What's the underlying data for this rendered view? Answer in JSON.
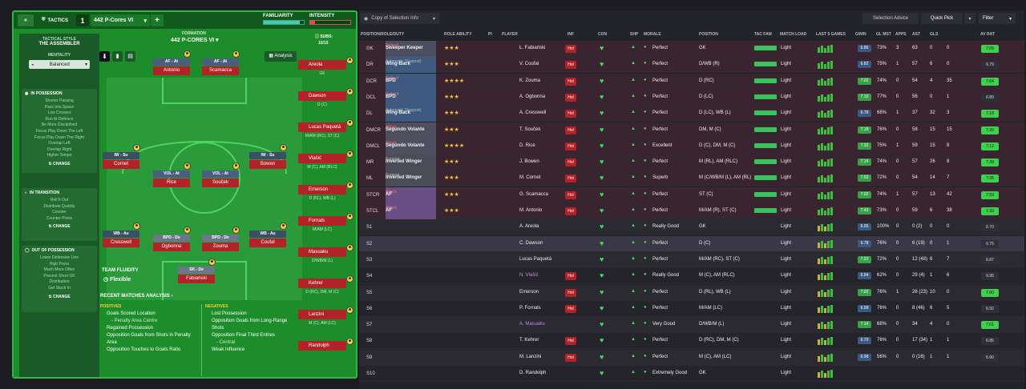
{
  "tactics": {
    "back": "«",
    "label": "TACTICS",
    "slot": "1",
    "name": "442 P-Cores VI",
    "add": "+",
    "familiarity": "FAMILIARITY",
    "intensity": "INTENSITY"
  },
  "side": {
    "style_label": "TACTICAL STYLE",
    "style": "THE ASSEMBLER",
    "mentality_label": "MENTALITY",
    "mentality": "Balanced",
    "in_possession": "IN POSSESSION",
    "in_possession_items": [
      "Shorter Passing",
      "Pass Into Space",
      "Low Crosses",
      "Run At Defence",
      "Be More Disciplined",
      "Focus Play Down The Left",
      "Focus Play Down The Right",
      "Overlap Left",
      "Overlap Right",
      "Higher Tempo"
    ],
    "in_transition": "IN TRANSITION",
    "in_transition_items": [
      "Roll It Out",
      "Distribute Quickly",
      "Counter",
      "Counter-Press"
    ],
    "out_of_possession": "OUT OF POSSESSION",
    "out_items": [
      "Lower Defensive Line",
      "High Press",
      "Much More Often",
      "Prevent Short GK",
      "Distribution",
      "Get Stuck In"
    ],
    "change": "CHANGE"
  },
  "formation": {
    "label": "FORMATION",
    "name": "442 P-CORES VI",
    "subs_label": "SUBS:",
    "subs": "15/15",
    "analysis": "Analysis",
    "fluidity_label": "TEAM FLUIDITY",
    "fluidity": "Flexible"
  },
  "pitch_players": [
    {
      "role": "AF - At",
      "name": "Antonio"
    },
    {
      "role": "AF - At",
      "name": "Scamacca"
    },
    {
      "role": "IW - Su",
      "name": "Cornet"
    },
    {
      "role": "IW - Su",
      "name": "Bowen"
    },
    {
      "role": "VOL - At",
      "name": "Rice"
    },
    {
      "role": "VOL - At",
      "name": "Souček"
    },
    {
      "role": "WB - Au",
      "name": "Cresswell"
    },
    {
      "role": "BPD - De",
      "name": "Ogbonna"
    },
    {
      "role": "BPD - De",
      "name": "Zouma"
    },
    {
      "role": "WB - Au",
      "name": "Coufal"
    },
    {
      "role": "SK - De",
      "name": "Fabiański"
    }
  ],
  "subs_list": [
    {
      "name": "Areola",
      "pos": "GK"
    },
    {
      "name": "Dawson",
      "pos": "D (C)"
    },
    {
      "name": "Lucas Paquetá",
      "pos": "M/AM (RC), ST (C)"
    },
    {
      "name": "Vlašić",
      "pos": "M (C), AM (RLC)"
    },
    {
      "name": "Emerson",
      "pos": "D (RL), WB (L)"
    },
    {
      "name": "Fornals",
      "pos": "M/AM (LC)"
    },
    {
      "name": "Masuaku",
      "pos": "D/WB/M (L)"
    },
    {
      "name": "Kehrer",
      "pos": "D (RC), DM, M (C)"
    },
    {
      "name": "Lanzini",
      "pos": "M (C), AM (LC)"
    },
    {
      "name": "Randolph",
      "pos": ""
    }
  ],
  "recent": {
    "title": "RECENT MATCHES ANALYSIS",
    "positives": "POSITIVES",
    "negatives": "NEGATIVES",
    "pos_items": [
      "Goals Scored Location",
      "- Penalty Area Centre",
      "Regained Possession",
      "Opposition Goals from Shots in Penalty Area",
      "Opposition Touches to Goals Ratio"
    ],
    "neg_items": [
      "Lost Possession",
      "Opposition Goals from Long-Range Shots",
      "Opposition Final Third Entries",
      "- Central",
      "Weak Influence"
    ]
  },
  "rp_header": {
    "view": "Copy of Selection Info",
    "advice": "Selection Advice",
    "quick": "Quick Pick",
    "filter": "Filter"
  },
  "columns": [
    "POSITION/ROLE/DUTY",
    "ROLE ABILITY",
    "PI",
    "PLAYER",
    "INF",
    "CON",
    "SHP",
    "MORALE",
    "POSITION",
    "TAC FAM",
    "MATCH LOAD",
    "LAST 5 GAMES",
    "GWIN",
    "GL MST",
    "APPS",
    "AST",
    "GLS",
    "AV RAT"
  ],
  "rows": [
    {
      "pos": "GK",
      "role": "Sweeper Keeper",
      "duty": "Defend",
      "stars": "★★★",
      "player": "Ł. Fabiański",
      "inf": true,
      "morale": "Perfect",
      "position": "GK",
      "load": "Light",
      "form": "6.86",
      "gwin": "73%",
      "glm": "3",
      "apps": "63",
      "ast": "0",
      "gls": "0",
      "av": "7.09"
    },
    {
      "pos": "DR",
      "role": "Wing-Back",
      "duty": "Automatic (Support)",
      "stars": "★★★",
      "player": "V. Coufal",
      "inf": true,
      "morale": "Perfect",
      "position": "D/WB (R)",
      "load": "Light",
      "form": "6.82",
      "gwin": "75%",
      "glm": "1",
      "apps": "57",
      "ast": "6",
      "gls": "0",
      "av": "6.79"
    },
    {
      "pos": "DCR",
      "role": "BPD",
      "duty": "Defend",
      "stars": "★★★★",
      "player": "K. Zouma",
      "inf": true,
      "morale": "Perfect",
      "position": "D (RC)",
      "load": "Light",
      "form": "7.02",
      "gwin": "74%",
      "glm": "0",
      "apps": "54",
      "ast": "4",
      "gls": "35",
      "av": "7.64"
    },
    {
      "pos": "DCL",
      "role": "BPD",
      "duty": "Defend",
      "stars": "★★★",
      "player": "A. Ogbonna",
      "inf": true,
      "morale": "Perfect",
      "position": "D (LC)",
      "load": "Light",
      "form": "7.10",
      "gwin": "77%",
      "glm": "0",
      "apps": "56",
      "ast": "0",
      "gls": "1",
      "av": "6.89"
    },
    {
      "pos": "DL",
      "role": "Wing-Back",
      "duty": "Automatic (Support)",
      "stars": "★★★",
      "player": "A. Cresswell",
      "inf": true,
      "morale": "Perfect",
      "position": "D (LC), WB (L)",
      "load": "Light",
      "form": "6.78",
      "gwin": "68%",
      "glm": "1",
      "apps": "37",
      "ast": "32",
      "gls": "3",
      "av": "7.18"
    },
    {
      "pos": "DMCR",
      "role": "Segundo Volante",
      "duty": "Attack",
      "stars": "★★★",
      "player": "T. Souček",
      "inf": true,
      "morale": "Perfect",
      "position": "DM, M (C)",
      "load": "Light",
      "form": "7.18",
      "gwin": "76%",
      "glm": "0",
      "apps": "58",
      "ast": "15",
      "gls": "15",
      "av": "7.26"
    },
    {
      "pos": "DMCL",
      "role": "Segundo Volante",
      "duty": "Attack",
      "stars": "★★★★",
      "player": "D. Rice",
      "inf": true,
      "morale": "Excellent",
      "position": "D (C), DM, M (C)",
      "load": "Light",
      "form": "7.32",
      "gwin": "75%",
      "glm": "1",
      "apps": "59",
      "ast": "15",
      "gls": "8",
      "av": "7.12"
    },
    {
      "pos": "MR",
      "role": "Inverted Winger",
      "duty": "Support",
      "stars": "★★★",
      "player": "J. Bowen",
      "inf": true,
      "morale": "Perfect",
      "position": "M (RL), AM (RLC)",
      "load": "Light",
      "form": "7.14",
      "gwin": "74%",
      "glm": "0",
      "apps": "57",
      "ast": "26",
      "gls": "8",
      "av": "7.39"
    },
    {
      "pos": "ML",
      "role": "Inverted Winger",
      "duty": "Support",
      "stars": "★★★",
      "player": "M. Cornet",
      "inf": true,
      "morale": "Superb",
      "position": "M (C/WB/M (L), AM (RL)",
      "load": "Light",
      "form": "7.02",
      "gwin": "72%",
      "glm": "0",
      "apps": "54",
      "ast": "14",
      "gls": "7",
      "av": "7.05"
    },
    {
      "pos": "STCR",
      "role": "AF",
      "duty": "Attack",
      "stars": "★★★",
      "player": "G. Scamacca",
      "inf": true,
      "morale": "Perfect",
      "position": "ST (C)",
      "load": "Light",
      "form": "7.02",
      "gwin": "74%",
      "glm": "1",
      "apps": "57",
      "ast": "13",
      "gls": "42",
      "av": "7.59"
    },
    {
      "pos": "STCL",
      "role": "AF",
      "duty": "Attack",
      "stars": "★★★",
      "player": "M. Antonio",
      "inf": true,
      "morale": "Perfect",
      "position": "M/AM (R), ST (C)",
      "load": "Light",
      "form": "7.43",
      "gwin": "73%",
      "glm": "0",
      "apps": "59",
      "ast": "6",
      "gls": "38",
      "av": "7.33"
    },
    {
      "pos": "S1",
      "role": "",
      "duty": "",
      "stars": "",
      "player": "A. Areola",
      "inf": false,
      "morale": "Really Good",
      "position": "GK",
      "load": "Light",
      "form": "6.95",
      "gwin": "100%",
      "glm": "0",
      "apps": "0 (2)",
      "ast": "0",
      "gls": "0",
      "av": "6.70"
    },
    {
      "pos": "S2",
      "role": "",
      "duty": "",
      "stars": "",
      "player": "C. Dawson",
      "inf": false,
      "morale": "Perfect",
      "position": "D (C)",
      "load": "Light",
      "form": "6.78",
      "gwin": "76%",
      "glm": "0",
      "apps": "6 (19)",
      "ast": "0",
      "gls": "1",
      "av": "6.75"
    },
    {
      "pos": "S3",
      "role": "",
      "duty": "",
      "stars": "",
      "player": "Lucas Paquetá",
      "inf": false,
      "morale": "Perfect",
      "position": "M/AM (RC), ST (C)",
      "load": "Light",
      "form": "7.22",
      "gwin": "72%",
      "glm": "0",
      "apps": "12 (48)",
      "ast": "6",
      "gls": "7",
      "av": "6.87"
    },
    {
      "pos": "S4",
      "role": "",
      "duty": "",
      "stars": "",
      "player": "N. Vlašić",
      "inf": true,
      "morale": "Really Good",
      "position": "M (C), AM (RLC)",
      "load": "Light",
      "form": "6.94",
      "gwin": "62%",
      "glm": "0",
      "apps": "29 (4)",
      "ast": "1",
      "gls": "6",
      "av": "6.95"
    },
    {
      "pos": "S5",
      "role": "",
      "duty": "",
      "stars": "",
      "player": "Emerson",
      "inf": true,
      "morale": "Perfect",
      "position": "D (RL), WB (L)",
      "load": "Light",
      "form": "7.02",
      "gwin": "76%",
      "glm": "1",
      "apps": "26 (23)",
      "ast": "10",
      "gls": "0",
      "av": "7.00"
    },
    {
      "pos": "S6",
      "role": "",
      "duty": "",
      "stars": "",
      "player": "P. Fornals",
      "inf": true,
      "morale": "Perfect",
      "position": "M/AM (LC)",
      "load": "Light",
      "form": "6.98",
      "gwin": "76%",
      "glm": "0",
      "apps": "8 (46)",
      "ast": "6",
      "gls": "5",
      "av": "6.92"
    },
    {
      "pos": "S7",
      "role": "",
      "duty": "",
      "stars": "",
      "player": "A. Masuaku",
      "inf": false,
      "morale": "Very Good",
      "position": "D/WB/M (L)",
      "load": "Light",
      "form": "7.14",
      "gwin": "68%",
      "glm": "0",
      "apps": "34",
      "ast": "4",
      "gls": "0",
      "av": "7.01"
    },
    {
      "pos": "S8",
      "role": "",
      "duty": "",
      "stars": "",
      "player": "T. Kehrer",
      "inf": true,
      "morale": "Perfect",
      "position": "D (RC), DM, M (C)",
      "load": "Light",
      "form": "6.70",
      "gwin": "76%",
      "glm": "0",
      "apps": "17 (34)",
      "ast": "1",
      "gls": "1",
      "av": "6.85"
    },
    {
      "pos": "S9",
      "role": "",
      "duty": "",
      "stars": "",
      "player": "M. Lanzini",
      "inf": true,
      "morale": "Perfect",
      "position": "M (C), AM (LC)",
      "load": "Light",
      "form": "6.98",
      "gwin": "56%",
      "glm": "0",
      "apps": "0 (16)",
      "ast": "1",
      "gls": "1",
      "av": "6.90"
    },
    {
      "pos": "S10",
      "role": "",
      "duty": "",
      "stars": "",
      "player": "D. Randolph",
      "inf": false,
      "morale": "Extremely Good",
      "position": "GK",
      "load": "Light",
      "form": "",
      "gwin": "",
      "glm": "",
      "apps": "",
      "ast": "",
      "gls": "",
      "av": ""
    }
  ]
}
